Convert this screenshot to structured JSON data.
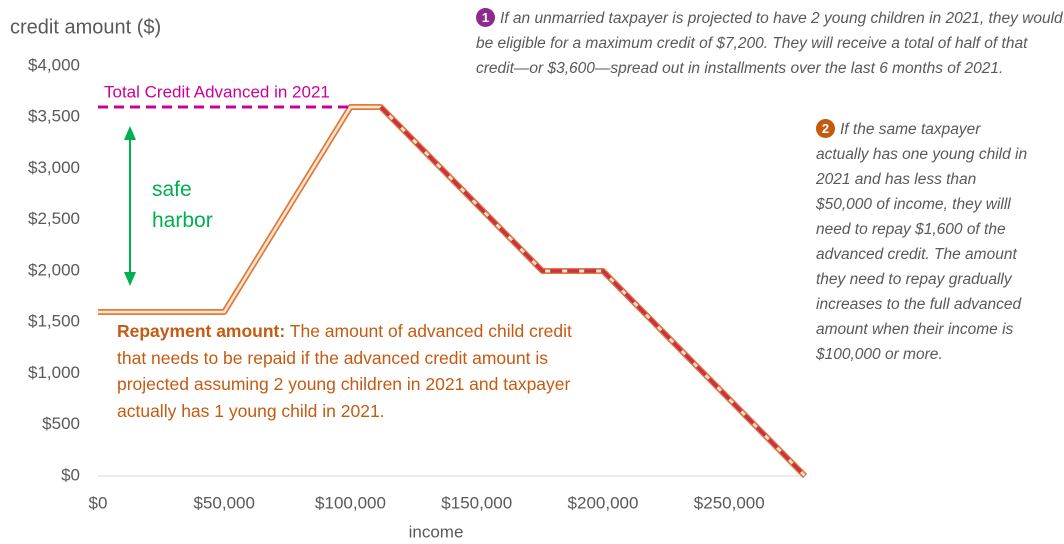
{
  "chart_data": {
    "type": "line",
    "y_label": "credit amount ($)",
    "x_label": "income",
    "x": [
      0,
      50000,
      100000,
      112000,
      176000,
      200000,
      280000
    ],
    "series": [
      {
        "color": "#e07b39",
        "x": [
          0,
          50000,
          100000,
          112000,
          176000,
          200000,
          280000
        ],
        "values": [
          1600,
          1600,
          3600,
          3600,
          2000,
          2000,
          0
        ]
      },
      {
        "color": "#c9304a",
        "x": [
          112000,
          176000,
          200000,
          280000
        ],
        "values": [
          3600,
          2000,
          2000,
          0
        ]
      }
    ],
    "xlim": [
      0,
      280000
    ],
    "xticks": [
      {
        "value": 0,
        "label": "$0"
      },
      {
        "value": 50000,
        "label": "$50,000"
      },
      {
        "value": 100000,
        "label": "$100,000"
      },
      {
        "value": 150000,
        "label": "$150,000"
      },
      {
        "value": 200000,
        "label": "$200,000"
      },
      {
        "value": 250000,
        "label": "$250,000"
      }
    ],
    "ylim": [
      0,
      4000
    ],
    "yticks": [
      {
        "value": 0,
        "label": "$0"
      },
      {
        "value": 500,
        "label": "$500"
      },
      {
        "value": 1000,
        "label": "$1,000"
      },
      {
        "value": 1500,
        "label": "$1,500"
      },
      {
        "value": 2000,
        "label": "$2,000"
      },
      {
        "value": 2500,
        "label": "$2,500"
      },
      {
        "value": 3000,
        "label": "$3,000"
      },
      {
        "value": 3500,
        "label": "$3,500"
      },
      {
        "value": 4000,
        "label": "$4,000"
      }
    ],
    "reference_line": {
      "text": "Total Credit Advanced in 2021",
      "y": 3600,
      "x": [
        0,
        100000
      ],
      "color": "#cc0099"
    },
    "safe_harbor": "safe\nharbor",
    "repayment_note": {
      "heading": "Repayment amount:",
      "text": "The amount of advanced child credit that needs to be repaid if the advanced credit amount is projected assuming 2 young children in 2021 and taxpayer actually has 1 young child in 2021."
    },
    "notes": [
      {
        "number": "1",
        "text": "If an unmarried taxpayer is projected to have 2 young children in 2021, they would be eligible for a maximum credit of $7,200. They will receive a total of half of that credit—or $3,600—spread out in installments over the last 6 months of 2021."
      },
      {
        "number": "2",
        "text": "If the same taxpayer actually has one young child in 2021 and has less than $50,000 of income, they willl need to repay $1,600 of the advanced credit. The amount they need to repay gradually increases to the full advanced amount when their income is $100,000 or more."
      }
    ]
  }
}
